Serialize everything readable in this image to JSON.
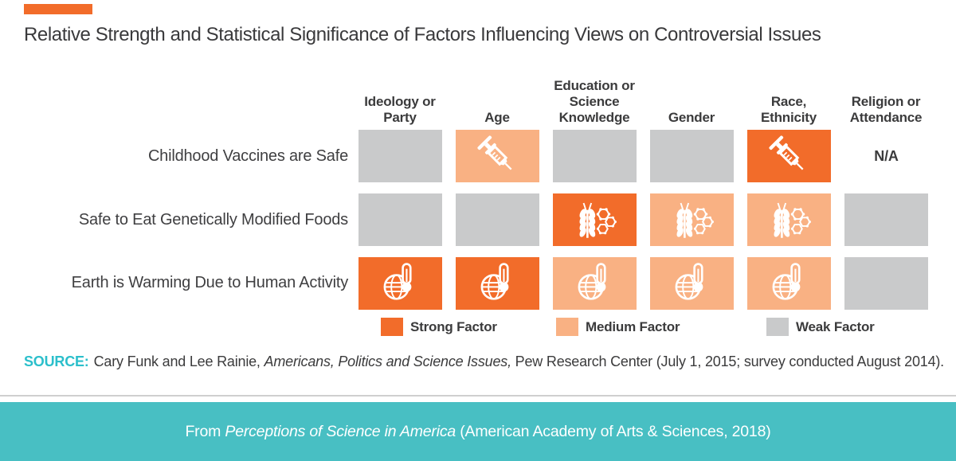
{
  "chart_data": {
    "type": "heatmap",
    "title": "Relative Strength and Statistical Significance of Factors Influencing Views on Controversial Issues",
    "columns": [
      "Ideology or\nParty",
      "Age",
      "Education or\nScience\nKnowledge",
      "Gender",
      "Race,\nEthnicity",
      "Religion or\nAttendance"
    ],
    "rows": [
      {
        "label": "Childhood Vaccines are Safe",
        "cells": [
          {
            "strength": "weak",
            "icon": "none"
          },
          {
            "strength": "medium",
            "icon": "syringe"
          },
          {
            "strength": "weak",
            "icon": "none"
          },
          {
            "strength": "weak",
            "icon": "none"
          },
          {
            "strength": "strong",
            "icon": "syringe"
          },
          {
            "strength": "na",
            "icon": "none"
          }
        ]
      },
      {
        "label": "Safe to Eat Genetically Modified Foods",
        "cells": [
          {
            "strength": "weak",
            "icon": "none"
          },
          {
            "strength": "weak",
            "icon": "none"
          },
          {
            "strength": "strong",
            "icon": "wheat-molecule"
          },
          {
            "strength": "medium",
            "icon": "wheat-molecule"
          },
          {
            "strength": "medium",
            "icon": "wheat-molecule"
          },
          {
            "strength": "weak",
            "icon": "none"
          }
        ]
      },
      {
        "label": "Earth is Warming Due to Human Activity",
        "cells": [
          {
            "strength": "strong",
            "icon": "globe-thermometer"
          },
          {
            "strength": "strong",
            "icon": "globe-thermometer"
          },
          {
            "strength": "medium",
            "icon": "globe-thermometer"
          },
          {
            "strength": "medium",
            "icon": "globe-thermometer"
          },
          {
            "strength": "medium",
            "icon": "globe-thermometer"
          },
          {
            "strength": "weak",
            "icon": "none"
          }
        ]
      }
    ],
    "na_label": "N/A",
    "legend": [
      {
        "label": "Strong Factor",
        "level": "strong",
        "color": "#F26C2A"
      },
      {
        "label": "Medium Factor",
        "level": "medium",
        "color": "#F9B183"
      },
      {
        "label": "Weak Factor",
        "level": "weak",
        "color": "#C9CACB"
      }
    ],
    "legend_position": "bottom",
    "grid": false
  },
  "source": {
    "label": "SOURCE:",
    "text_before_italic": "Cary Funk and Lee Rainie, ",
    "italic": "Americans, Politics and Science Issues,",
    "text_after_italic": " Pew Research Center (July 1, 2015; survey conducted August 2014)."
  },
  "footer": {
    "text_before_italic": "From ",
    "italic": "Perceptions of Science in America",
    "text_after_italic": " (American Academy of Arts & Sciences, 2018)"
  },
  "colors": {
    "strong": "#F26C2A",
    "medium": "#F9B183",
    "weak": "#C9CACB",
    "footer_teal": "#48BFC3",
    "source_label_teal": "#2BBFCB",
    "text_dark": "#3B3B3C",
    "accent_bar": "#F26C2A"
  }
}
